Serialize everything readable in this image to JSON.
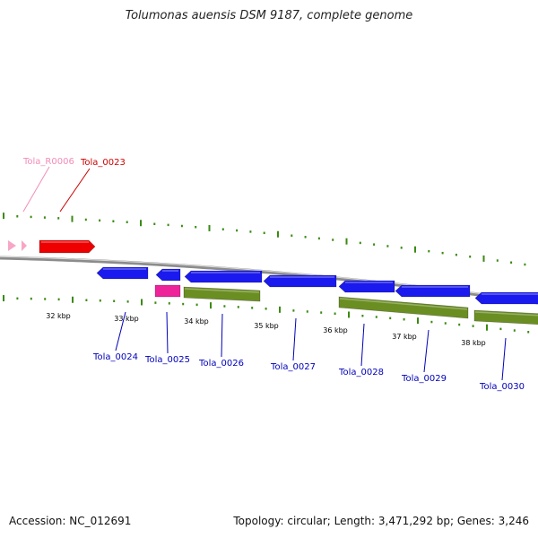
{
  "title": "Tolumonas auensis DSM 9187, complete genome",
  "accession": "Accession: NC_012691",
  "summary": "Topology: circular; Length: 3,471,292 bp; Genes: 3,246",
  "colors": {
    "backbone": "#8c8c8c",
    "tick": "#3a8a12",
    "gene_blue": "#1a1aee",
    "rna_red": "#ee0000",
    "rna_pink": "#f7a6c6",
    "rrna_magenta": "#ee2299",
    "cds_green": "#6b8e23",
    "label_blue": "#0000bb",
    "label_red": "#cc0000",
    "label_pink": "#f28cb8"
  },
  "kbp_labels": [
    "32 kbp",
    "33 kbp",
    "34 kbp",
    "35 kbp",
    "36 kbp",
    "37 kbp",
    "38 kbp"
  ],
  "gene_labels": [
    {
      "text": "Tola_R0006",
      "color": "label_pink"
    },
    {
      "text": "Tola_0023",
      "color": "label_red"
    },
    {
      "text": "Tola_0024",
      "color": "label_blue"
    },
    {
      "text": "Tola_0025",
      "color": "label_blue"
    },
    {
      "text": "Tola_0026",
      "color": "label_blue"
    },
    {
      "text": "Tola_0027",
      "color": "label_blue"
    },
    {
      "text": "Tola_0028",
      "color": "label_blue"
    },
    {
      "text": "Tola_0029",
      "color": "label_blue"
    },
    {
      "text": "Tola_0030",
      "color": "label_blue"
    }
  ]
}
